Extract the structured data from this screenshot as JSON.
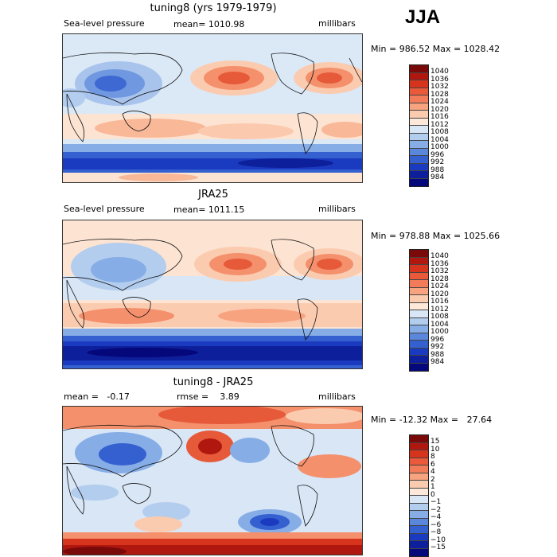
{
  "season": "JJA",
  "panels": [
    {
      "title": "tuning8 (yrs 1979-1979)",
      "left_label": "Sea-level pressure",
      "center_label": "mean= 1010.98",
      "units": "millibars",
      "minmax": "Min = 986.52 Max = 1028.42",
      "colorbar": {
        "labels": [
          "1040",
          "1036",
          "1032",
          "1028",
          "1024",
          "1020",
          "1016",
          "1012",
          "1008",
          "1004",
          "1000",
          "996",
          "992",
          "988",
          "984"
        ],
        "colors": [
          "#7a0a0a",
          "#b0170f",
          "#d6341c",
          "#e9593a",
          "#f27c5a",
          "#f8a37f",
          "#fbcbb0",
          "#fde8da",
          "#d8e6f6",
          "#b3cdee",
          "#86ade6",
          "#5a86db",
          "#3560d0",
          "#1a3bbf",
          "#0d1f9a",
          "#05087a"
        ]
      }
    },
    {
      "title": "JRA25",
      "left_label": "Sea-level pressure",
      "center_label": "mean= 1011.15",
      "units": "millibars",
      "minmax": "Min = 978.88 Max = 1025.66",
      "colorbar": {
        "labels": [
          "1040",
          "1036",
          "1032",
          "1028",
          "1024",
          "1020",
          "1016",
          "1012",
          "1008",
          "1004",
          "1000",
          "996",
          "992",
          "988",
          "984"
        ],
        "colors": [
          "#7a0a0a",
          "#b0170f",
          "#d6341c",
          "#e9593a",
          "#f27c5a",
          "#f8a37f",
          "#fbcbb0",
          "#fde8da",
          "#d8e6f6",
          "#b3cdee",
          "#86ade6",
          "#5a86db",
          "#3560d0",
          "#1a3bbf",
          "#0d1f9a",
          "#05087a"
        ]
      }
    },
    {
      "title": "tuning8 - JRA25",
      "left_label": "mean =   -0.17",
      "center_label": "rmse =    3.89",
      "units": "millibars",
      "minmax": "Min = -12.32 Max =   27.64",
      "colorbar": {
        "labels": [
          "15",
          "10",
          "8",
          "6",
          "4",
          "2",
          "1",
          "0",
          "−1",
          "−2",
          "−4",
          "−6",
          "−8",
          "−10",
          "−15"
        ],
        "colors": [
          "#7a0a0a",
          "#b0170f",
          "#d6341c",
          "#e9593a",
          "#f27c5a",
          "#f8a37f",
          "#fbcbb0",
          "#fde8da",
          "#d8e6f6",
          "#b3cdee",
          "#86ade6",
          "#5a86db",
          "#3560d0",
          "#1a3bbf",
          "#0d1f9a",
          "#05087a"
        ]
      }
    }
  ]
}
